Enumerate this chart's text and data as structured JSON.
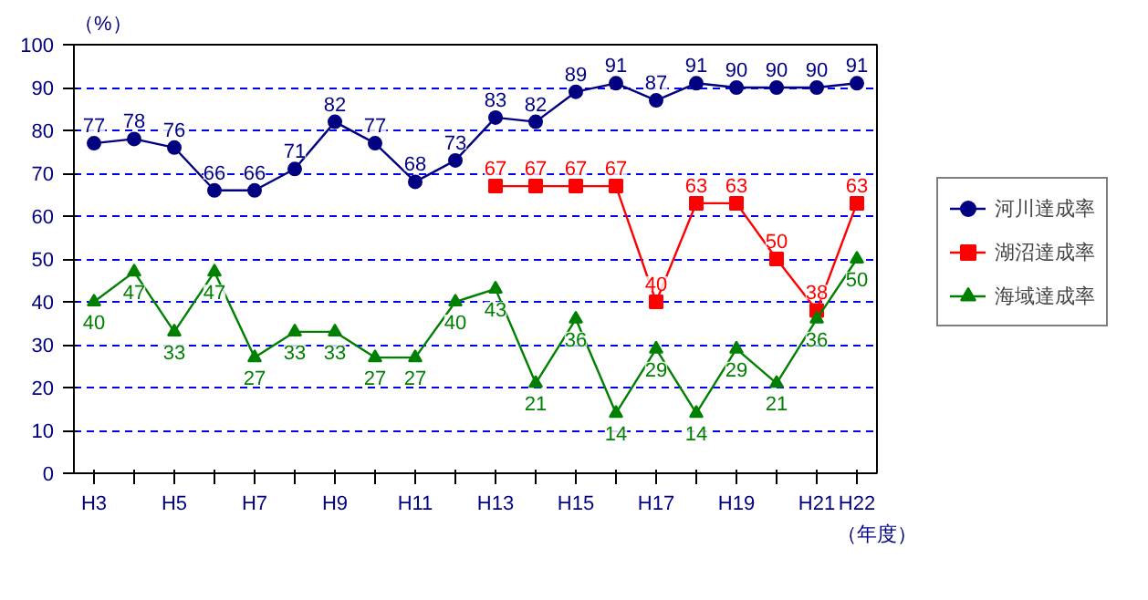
{
  "chart_data": {
    "type": "line",
    "ylabel": "（%）",
    "xlabel": "（年度）",
    "categories": [
      "H3",
      null,
      "H5",
      null,
      "H7",
      null,
      "H9",
      null,
      "H11",
      null,
      "H13",
      null,
      "H15",
      null,
      "H17",
      null,
      "H19",
      null,
      "H21",
      "H22"
    ],
    "series": [
      {
        "name": "河川達成率",
        "color": "#000080",
        "marker": "circle",
        "values": [
          77,
          78,
          76,
          66,
          66,
          71,
          82,
          77,
          68,
          73,
          83,
          82,
          89,
          91,
          87,
          91,
          90,
          90,
          90,
          91
        ]
      },
      {
        "name": "湖沼達成率",
        "color": "#ff0000",
        "marker": "square",
        "values": [
          null,
          null,
          null,
          null,
          null,
          null,
          null,
          null,
          null,
          null,
          67,
          67,
          67,
          67,
          40,
          63,
          63,
          50,
          38,
          63
        ]
      },
      {
        "name": "海域達成率",
        "color": "#008000",
        "marker": "triangle",
        "values": [
          40,
          47,
          33,
          47,
          27,
          33,
          33,
          27,
          27,
          40,
          43,
          21,
          36,
          14,
          29,
          14,
          29,
          21,
          36,
          50
        ]
      }
    ],
    "ylim": [
      0,
      100
    ],
    "yticks": [
      0,
      10,
      20,
      30,
      40,
      50,
      60,
      70,
      80,
      90,
      100
    ],
    "grid": "y",
    "legend": "right",
    "data_labels": true,
    "line_style": "solid"
  }
}
